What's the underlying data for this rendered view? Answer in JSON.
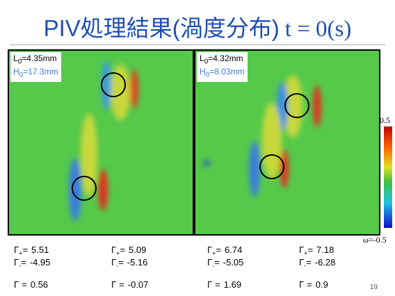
{
  "title": {
    "main": "PIV処理結果(渦度分布)",
    "time": "t = 0(s)"
  },
  "panels": [
    {
      "l_sym": "L",
      "l_sub": "0",
      "l_val": "=4.35mm",
      "h_sym": "H",
      "h_sub": "0",
      "h_val": "=17.3mm"
    },
    {
      "l_sym": "L",
      "l_sub": "0",
      "l_val": "=4.32mm",
      "h_sym": "H",
      "h_sub": "0",
      "h_val": "=8.03mm"
    }
  ],
  "colorbar": {
    "max": "0.5",
    "min": "ω=-0.5"
  },
  "symbols": {
    "gamma": "Γ",
    "plus": "+",
    "minus": "-",
    "eq": "="
  },
  "stats": [
    {
      "plus": "5.51",
      "minus": "-4.95",
      "total": "0.56"
    },
    {
      "plus": "5.09",
      "minus": "-5.16",
      "total": "-0.07"
    },
    {
      "plus": "6.74",
      "minus": "-5.05",
      "total": "1.69"
    },
    {
      "plus": "7.18",
      "minus": "-6.28",
      "total": "0.9"
    }
  ],
  "page_number": "19"
}
